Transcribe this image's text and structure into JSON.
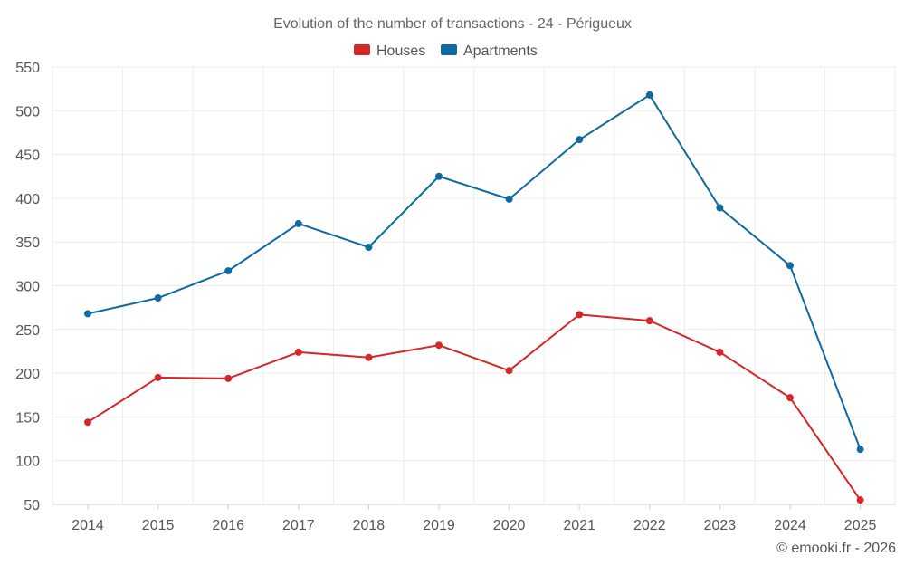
{
  "chart_data": {
    "type": "line",
    "title": "Evolution of the number of transactions - 24 - Périgueux",
    "categories": [
      "2014",
      "2015",
      "2016",
      "2017",
      "2018",
      "2019",
      "2020",
      "2021",
      "2022",
      "2023",
      "2024",
      "2025"
    ],
    "series": [
      {
        "name": "Houses",
        "color": "#d62728",
        "values": [
          144,
          195,
          194,
          224,
          218,
          232,
          203,
          267,
          260,
          224,
          172,
          55
        ]
      },
      {
        "name": "Apartments",
        "color": "#0e6aa0",
        "values": [
          268,
          286,
          317,
          371,
          344,
          425,
          399,
          467,
          518,
          389,
          323,
          113
        ]
      }
    ],
    "ylim": [
      50,
      550
    ],
    "yticks": [
      50,
      100,
      150,
      200,
      250,
      300,
      350,
      400,
      450,
      500,
      550
    ],
    "xlabel": "",
    "ylabel": "",
    "grid": true,
    "legend": "top-center"
  },
  "credit": "© emooki.fr - 2026"
}
